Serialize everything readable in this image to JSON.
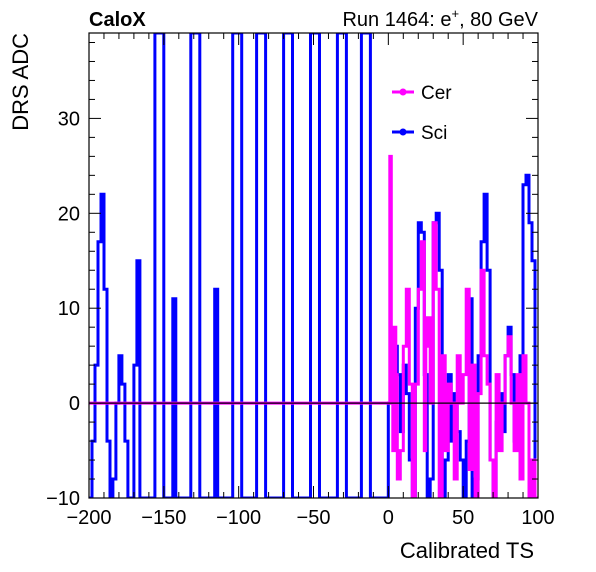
{
  "header": {
    "left_label": "CaloX",
    "run_label": "Run 1464: e",
    "run_sup": "+",
    "run_suffix": ", 80 GeV"
  },
  "chart_data": {
    "type": "line",
    "xlabel": "Calibrated TS",
    "ylabel": "DRS ADC",
    "xlim": [
      -200,
      100
    ],
    "ylim": [
      -10,
      39
    ],
    "xticks": [
      -200,
      -150,
      -100,
      -50,
      0,
      50,
      100
    ],
    "yticks": [
      -10,
      0,
      10,
      20,
      30
    ],
    "xtick_labels": [
      "−200",
      "−150",
      "−100",
      "−50",
      "0",
      "50",
      "100"
    ],
    "ytick_labels": [
      "−10",
      "0",
      "10",
      "20",
      "30"
    ],
    "zero_line": true,
    "legend_position": "top-right",
    "series": [
      {
        "name": "Cer",
        "color": "#ff00ff",
        "step": true,
        "x": [
          -200,
          0,
          1,
          2,
          3,
          4,
          5,
          6,
          8,
          10,
          12,
          14,
          16,
          18,
          20,
          22,
          24,
          25,
          26,
          28,
          30,
          32,
          34,
          36,
          38,
          40,
          42,
          44,
          46,
          48,
          50,
          52,
          54,
          56,
          58,
          60,
          62,
          64,
          66,
          68,
          70,
          72,
          74,
          76,
          78,
          80,
          82,
          84,
          86,
          88,
          90,
          92,
          94,
          96,
          98,
          100
        ],
        "y": [
          0,
          0,
          26,
          5,
          -5,
          8,
          3,
          -8,
          -5,
          6,
          12,
          2,
          -12,
          2,
          12,
          17,
          -5,
          6,
          9,
          0,
          19,
          12,
          -12,
          5,
          -5,
          2,
          0,
          -8,
          5,
          0,
          3,
          12,
          -7,
          4,
          -12,
          1,
          14,
          5,
          2,
          -6,
          -12,
          3,
          -5,
          0,
          5,
          7,
          0,
          -5,
          3,
          -8,
          5,
          0,
          -10,
          -6,
          -10,
          -10
        ]
      },
      {
        "name": "Sci",
        "color": "#0000ff",
        "step": true,
        "x": [
          -200,
          -198,
          -196,
          -194,
          -192,
          -190,
          -188,
          -186,
          -184,
          -182,
          -180,
          -178,
          -176,
          -174,
          -172,
          -170,
          -168,
          -166,
          -164,
          -162,
          -160,
          -158,
          -156,
          -154,
          -152,
          -150,
          -148,
          -146,
          -144,
          -142,
          -140,
          -138,
          -136,
          -134,
          -132,
          -130,
          -128,
          -126,
          -124,
          -122,
          -120,
          -118,
          -116,
          -114,
          -112,
          -110,
          -108,
          -106,
          -104,
          -102,
          -100,
          -98,
          -96,
          -94,
          -92,
          -90,
          -88,
          -86,
          -84,
          -82,
          -80,
          -78,
          -76,
          -74,
          -72,
          -70,
          -68,
          -66,
          -64,
          -62,
          -60,
          -58,
          -56,
          -54,
          -52,
          -50,
          -48,
          -46,
          -44,
          -42,
          -40,
          -38,
          -36,
          -34,
          -32,
          -30,
          -28,
          -26,
          -24,
          -22,
          -20,
          -18,
          -16,
          -14,
          -12,
          -10,
          -8,
          -6,
          -4,
          -2,
          0,
          2,
          4,
          6,
          8,
          10,
          12,
          14,
          16,
          18,
          20,
          22,
          24,
          26,
          28,
          30,
          32,
          34,
          36,
          38,
          40,
          42,
          44,
          46,
          48,
          50,
          52,
          54,
          56,
          58,
          60,
          62,
          64,
          66,
          68,
          70,
          72,
          74,
          76,
          78,
          80,
          82,
          84,
          86,
          88,
          90,
          92,
          94,
          96,
          98,
          100
        ],
        "y": [
          -10,
          -4,
          4,
          17,
          22,
          12,
          -4,
          -10,
          -8,
          0,
          5,
          2,
          -4,
          -10,
          -10,
          4,
          15,
          -10,
          -10,
          -10,
          -10,
          -10,
          39,
          39,
          39,
          -10,
          -10,
          -10,
          11,
          -10,
          -10,
          -10,
          -10,
          -10,
          39,
          39,
          39,
          -10,
          -10,
          -10,
          -10,
          -10,
          12,
          -10,
          -10,
          -10,
          -10,
          -10,
          39,
          39,
          39,
          -10,
          -10,
          -10,
          -10,
          -10,
          39,
          39,
          39,
          -10,
          -10,
          -10,
          -10,
          -10,
          -10,
          39,
          39,
          39,
          -10,
          -10,
          -10,
          -10,
          -10,
          -10,
          39,
          39,
          39,
          -10,
          -10,
          -10,
          -10,
          -10,
          -10,
          39,
          39,
          39,
          -10,
          -10,
          -10,
          -10,
          -10,
          39,
          39,
          39,
          -10,
          -10,
          -10,
          -10,
          -10,
          -10,
          0,
          2,
          6,
          3,
          -3,
          4,
          1,
          -6,
          -10,
          10,
          19,
          18,
          3,
          -10,
          -8,
          19,
          20,
          14,
          -10,
          -6,
          3,
          -4,
          1,
          -3,
          -6,
          -10,
          -4,
          11,
          -10,
          -8,
          5,
          17,
          22,
          14,
          -6,
          -12,
          -2,
          1,
          -3,
          5,
          8,
          3,
          -4,
          -2,
          5,
          23,
          24,
          19,
          15,
          -10,
          -10
        ]
      }
    ]
  }
}
